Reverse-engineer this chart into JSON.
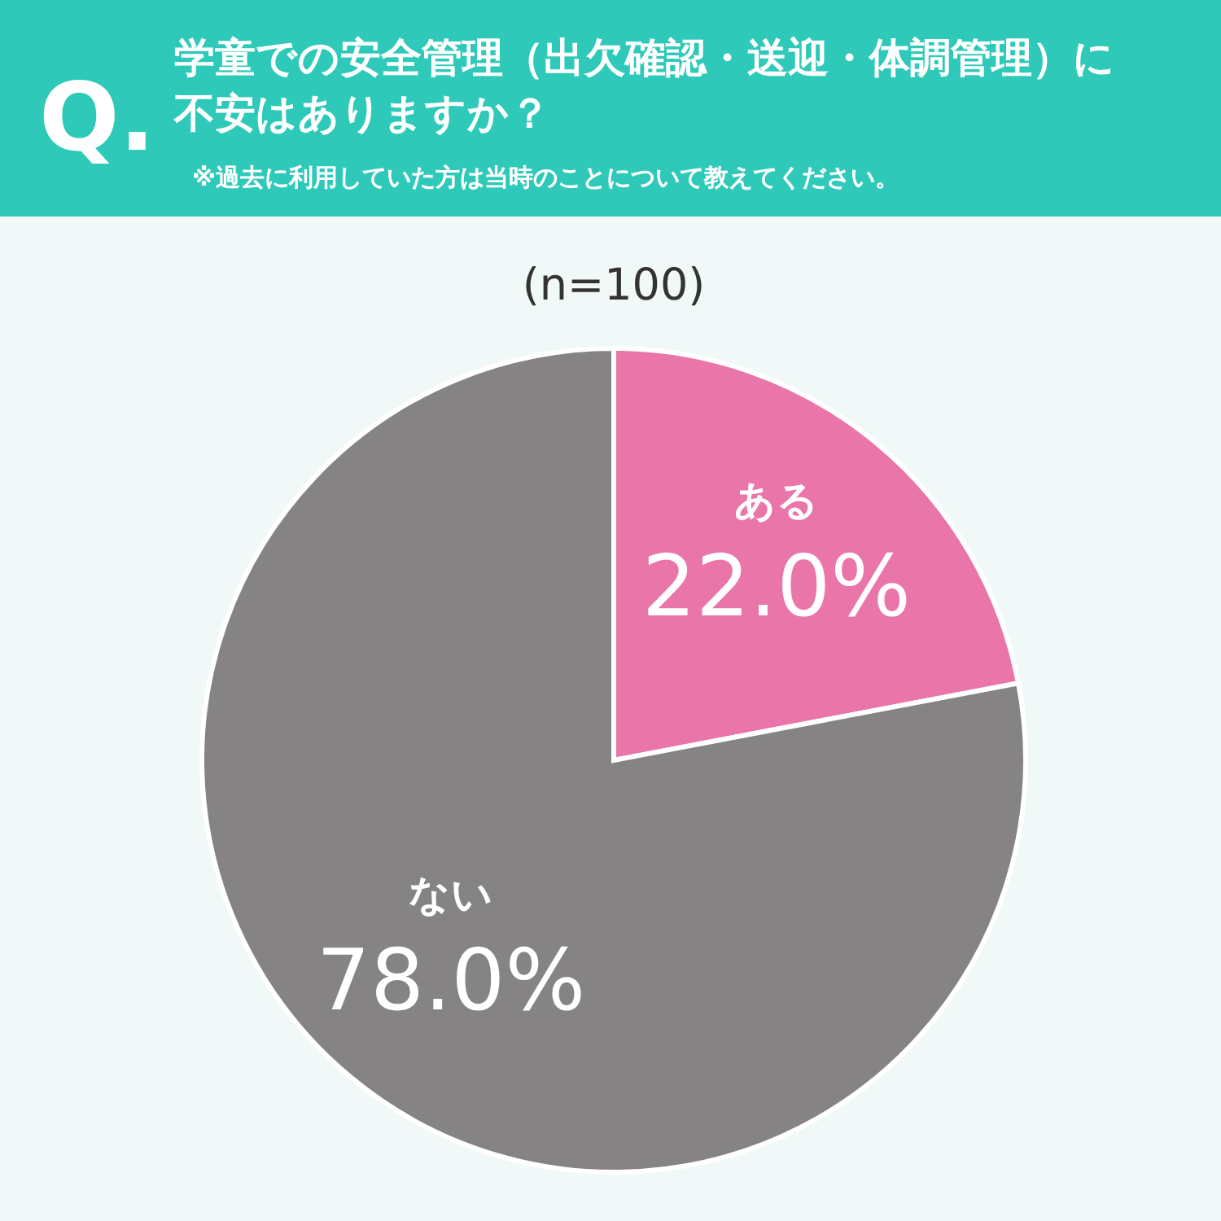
{
  "chart_data": {
    "type": "pie",
    "title": "学童での安全管理（出欠確認・送迎・体調管理）に不安はありますか？",
    "subtitle": "※過去に利用していた方は当時のことについて教えてください。",
    "annotations": [
      "Q.",
      "(n=100)"
    ],
    "categories": [
      "ある",
      "ない"
    ],
    "values": [
      22.0,
      78.0
    ],
    "colors": [
      "#e975a9",
      "#858383"
    ],
    "value_labels": [
      "22.0%",
      "78.0%"
    ]
  }
}
